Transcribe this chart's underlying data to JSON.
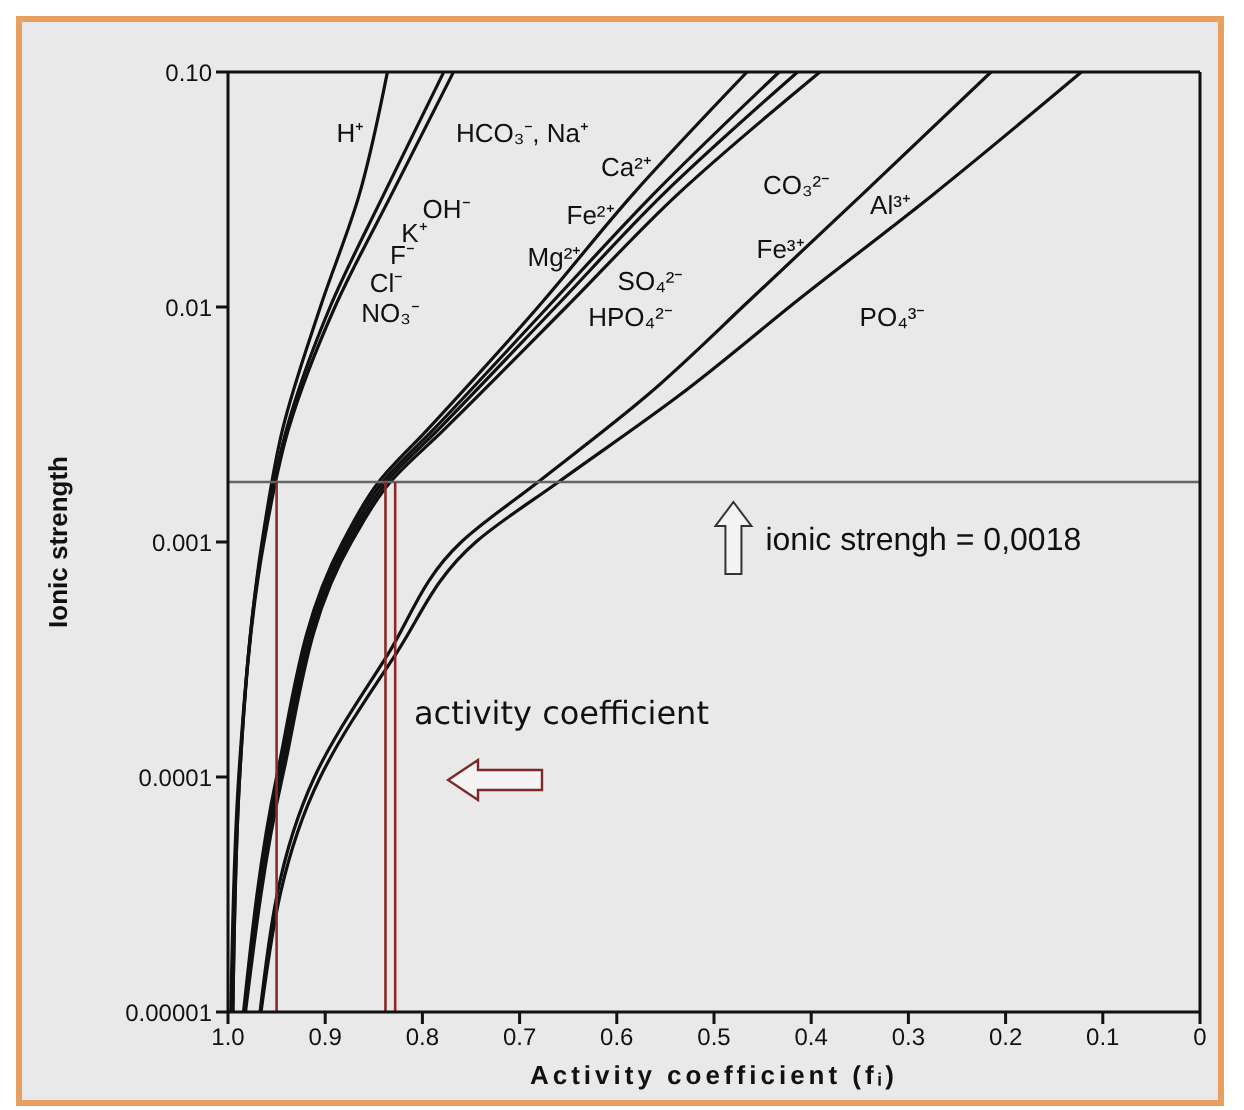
{
  "chart_data": {
    "type": "line",
    "xlabel": "Activity coefficient   (fᵢ)",
    "ylabel": "Ionic strength",
    "log": "y",
    "xlim": [
      1,
      0
    ],
    "ylim": [
      1e-05,
      0.1
    ],
    "xticks": [
      {
        "value": 1,
        "label": "1.0"
      },
      0.9,
      0.8,
      0.7,
      0.6,
      0.5,
      0.4,
      0.3,
      0.2,
      0.1,
      0
    ],
    "yticks": [
      {
        "value": 1e-05,
        "label": "0.00001"
      },
      0.0001,
      0.001,
      0.01,
      {
        "value": 0.1,
        "label": "0.10"
      }
    ],
    "marker": "none",
    "line_style": "solid",
    "series": [
      {
        "color": "#111111",
        "x": [
          0.997,
          0.989,
          0.965,
          0.944,
          0.905,
          0.865,
          0.836
        ],
        "values": [
          1e-05,
          0.0001,
          0.001,
          0.003,
          0.01,
          0.03,
          0.1
        ]
      },
      {
        "color": "#111111",
        "x": [
          0.995,
          0.988,
          0.964,
          0.94,
          0.895,
          0.84,
          0.778
        ],
        "values": [
          1e-05,
          0.0001,
          0.001,
          0.003,
          0.01,
          0.03,
          0.1
        ]
      },
      {
        "color": "#111111",
        "x": [
          0.995,
          0.988,
          0.963,
          0.938,
          0.89,
          0.832,
          0.768
        ],
        "values": [
          1e-05,
          0.0001,
          0.001,
          0.003,
          0.01,
          0.03,
          0.1
        ]
      },
      {
        "color": "#111111",
        "x": [
          0.984,
          0.95,
          0.882,
          0.845,
          0.795,
          0.681,
          0.584,
          0.466
        ],
        "values": [
          1e-05,
          0.0001,
          0.001,
          0.0018,
          0.003,
          0.01,
          0.03,
          0.1
        ]
      },
      {
        "color": "#111111",
        "x": [
          0.983,
          0.948,
          0.879,
          0.841,
          0.789,
          0.671,
          0.563,
          0.433
        ],
        "values": [
          1e-05,
          0.0001,
          0.001,
          0.0018,
          0.003,
          0.01,
          0.03,
          0.1
        ]
      },
      {
        "color": "#111111",
        "x": [
          0.983,
          0.946,
          0.876,
          0.837,
          0.784,
          0.663,
          0.553,
          0.414
        ],
        "values": [
          1e-05,
          0.0001,
          0.001,
          0.0018,
          0.003,
          0.01,
          0.03,
          0.1
        ]
      },
      {
        "color": "#111111",
        "x": [
          0.982,
          0.944,
          0.873,
          0.833,
          0.778,
          0.652,
          0.538,
          0.391
        ],
        "values": [
          1e-05,
          0.0001,
          0.001,
          0.0018,
          0.003,
          0.01,
          0.03,
          0.1
        ]
      },
      {
        "color": "#111111",
        "x": [
          0.967,
          0.911,
          0.836,
          0.76,
          0.681,
          0.569,
          0.46,
          0.348,
          0.215
        ],
        "values": [
          1e-05,
          0.0001,
          0.00033,
          0.001,
          0.0018,
          0.0042,
          0.011,
          0.03,
          0.1
        ]
      },
      {
        "color": "#111111",
        "x": [
          0.966,
          0.905,
          0.828,
          0.745,
          0.66,
          0.536,
          0.41,
          0.275,
          0.122
        ],
        "values": [
          1e-05,
          0.0001,
          0.00033,
          0.001,
          0.0018,
          0.0042,
          0.011,
          0.03,
          0.1
        ]
      }
    ],
    "ref_lines": [
      {
        "axis": "y",
        "value": 0.0018,
        "label": "ionic strengh = 0,0018",
        "color": "#666666"
      },
      {
        "axis": "x",
        "value": 0.95,
        "color": "#8b2a2a"
      },
      {
        "axis": "x",
        "value": 0.838,
        "color": "#8b2a2a"
      },
      {
        "axis": "x",
        "value": 0.828,
        "color": "#8b2a2a"
      }
    ],
    "annotations": [
      "H⁺",
      "HCO₃⁻, Na⁺",
      "Ca²⁺",
      "CO₃²⁻",
      "Al³⁺",
      "OH⁻",
      "Fe²⁺",
      "K⁺",
      "Fe³⁺",
      "F⁻",
      "Mg²⁺",
      "SO₄²⁻",
      "Cl⁻",
      "NO₃⁻",
      "HPO₄²⁻",
      "PO₄³⁻",
      "activity coefficient"
    ]
  }
}
